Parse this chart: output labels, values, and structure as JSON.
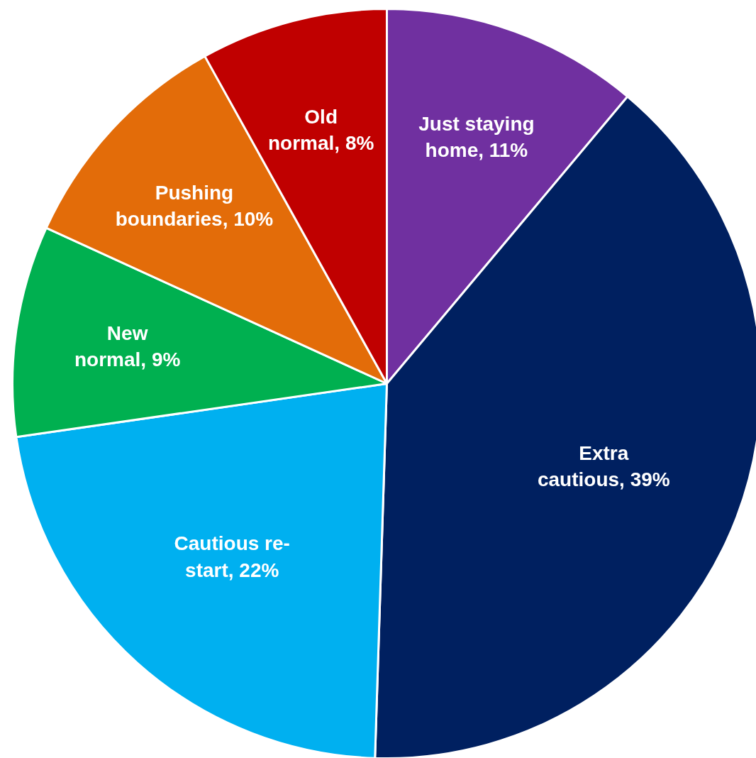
{
  "chart_data": {
    "type": "pie",
    "categories": [
      "Just staying home",
      "Extra cautious",
      "Cautious re-start",
      "New normal",
      "Pushing boundaries",
      "Old normal"
    ],
    "values": [
      11,
      39,
      22,
      9,
      10,
      8
    ],
    "value_labels": [
      "11%",
      "39%",
      "22%",
      "9%",
      "10%",
      "8%"
    ],
    "colors": [
      "#7030a0",
      "#002060",
      "#00b0f0",
      "#00b050",
      "#e36c09",
      "#c00000"
    ]
  }
}
